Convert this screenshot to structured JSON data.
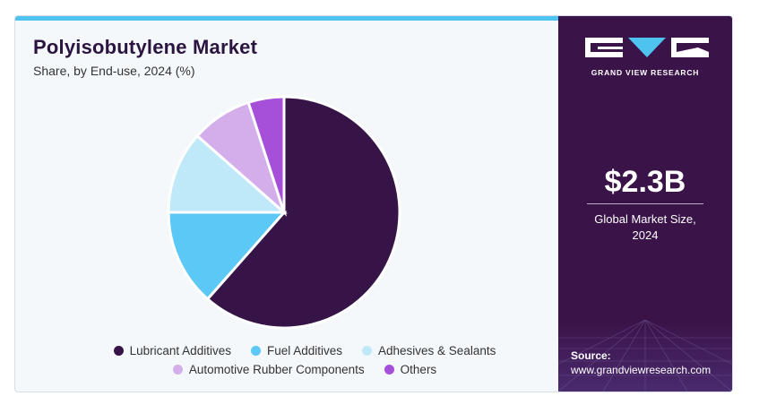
{
  "chart_data": {
    "type": "pie",
    "title": "Polyisobutylene Market",
    "subtitle": "Share, by End-use, 2024 (%)",
    "series": [
      {
        "name": "Lubricant Additives",
        "value": 61.5,
        "color": "#361447"
      },
      {
        "name": "Fuel Additives",
        "value": 13.5,
        "color": "#5bc8f5"
      },
      {
        "name": "Adhesives & Sealants",
        "value": 11.5,
        "color": "#bfe9f9"
      },
      {
        "name": "Automotive Rubber Components",
        "value": 8.5,
        "color": "#d3aeea"
      },
      {
        "name": "Others",
        "value": 5.0,
        "color": "#a64fd8"
      }
    ],
    "legend": "bottom"
  },
  "brand": {
    "name": "GRAND VIEW RESEARCH",
    "logo": "gvr-logo-icon"
  },
  "stat": {
    "value": "$2.3B",
    "label_line1": "Global Market Size,",
    "label_line2": "2024"
  },
  "source": {
    "title": "Source:",
    "url": "www.grandviewresearch.com"
  },
  "colors": {
    "accent_bar": "#4ec3ef",
    "panel": "#3a1348",
    "title": "#2b1540"
  }
}
